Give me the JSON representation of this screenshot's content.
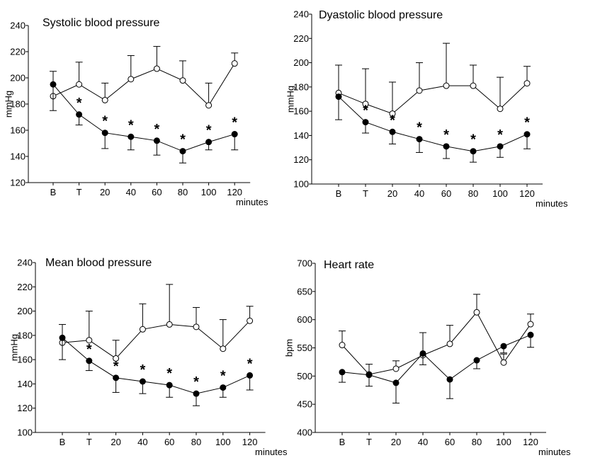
{
  "chart_data": [
    {
      "type": "line",
      "title": "Systolic blood pressure",
      "ylabel": "mmHg",
      "xunit": "minutes",
      "categories": [
        "B",
        "T",
        "20",
        "40",
        "60",
        "80",
        "100",
        "120"
      ],
      "ylim": [
        120,
        240
      ],
      "yticks": [
        120,
        140,
        160,
        180,
        200,
        220,
        240
      ],
      "series": [
        {
          "name": "open",
          "marker": "open",
          "values": [
            186,
            195,
            183,
            199,
            207,
            198,
            179,
            211
          ],
          "err": [
            19,
            17,
            13,
            18,
            17,
            15,
            17,
            8
          ]
        },
        {
          "name": "filled",
          "marker": "filled",
          "values": [
            195,
            172,
            158,
            155,
            152,
            144,
            151,
            157
          ],
          "err": [
            20,
            8,
            12,
            10,
            11,
            9,
            6,
            12
          ]
        }
      ],
      "significance": [
        "",
        "*",
        "*",
        "*",
        "*",
        "*",
        "*",
        "*"
      ]
    },
    {
      "type": "line",
      "title": "Dyastolic blood pressure",
      "ylabel": "mmHg",
      "xunit": "minutes",
      "categories": [
        "B",
        "T",
        "20",
        "40",
        "60",
        "80",
        "100",
        "120"
      ],
      "ylim": [
        100,
        240
      ],
      "yticks": [
        100,
        120,
        140,
        160,
        180,
        200,
        220,
        240
      ],
      "series": [
        {
          "name": "open",
          "marker": "open",
          "values": [
            175,
            166,
            158,
            177,
            181,
            181,
            162,
            183
          ],
          "err": [
            23,
            29,
            26,
            23,
            35,
            17,
            26,
            14
          ]
        },
        {
          "name": "filled",
          "marker": "filled",
          "values": [
            172,
            151,
            143,
            137,
            131,
            127,
            131,
            141
          ],
          "err": [
            19,
            9,
            10,
            11,
            10,
            9,
            9,
            12
          ]
        }
      ],
      "significance": [
        "",
        "*",
        "*",
        "*",
        "*",
        "*",
        "*",
        "*"
      ]
    },
    {
      "type": "line",
      "title": "Mean blood pressure",
      "ylabel": "mmHg",
      "xunit": "minutes",
      "categories": [
        "B",
        "T",
        "20",
        "40",
        "60",
        "80",
        "100",
        "120"
      ],
      "ylim": [
        100,
        240
      ],
      "yticks": [
        100,
        120,
        140,
        160,
        180,
        200,
        220,
        240
      ],
      "series": [
        {
          "name": "open",
          "marker": "open",
          "values": [
            174,
            176,
            161,
            185,
            189,
            187,
            169,
            192
          ],
          "err": [
            15,
            24,
            15,
            21,
            33,
            16,
            24,
            12
          ]
        },
        {
          "name": "filled",
          "marker": "filled",
          "values": [
            178,
            159,
            145,
            142,
            139,
            132,
            137,
            147
          ],
          "err": [
            18,
            8,
            12,
            10,
            10,
            10,
            8,
            12
          ]
        }
      ],
      "significance": [
        "",
        "*",
        "*",
        "*",
        "*",
        "*",
        "*",
        "*"
      ]
    },
    {
      "type": "line",
      "title": "Heart rate",
      "ylabel": "bpm",
      "xunit": "minutes",
      "categories": [
        "B",
        "T",
        "20",
        "40",
        "60",
        "80",
        "100",
        "120"
      ],
      "ylim": [
        400,
        700
      ],
      "yticks": [
        400,
        450,
        500,
        550,
        600,
        650,
        700
      ],
      "series": [
        {
          "name": "open",
          "marker": "open",
          "values": [
            555,
            503,
            513,
            537,
            557,
            613,
            524,
            592
          ],
          "err": [
            25,
            18,
            14,
            40,
            33,
            32,
            15,
            18
          ]
        },
        {
          "name": "filled",
          "marker": "filled",
          "values": [
            507,
            502,
            488,
            540,
            494,
            528,
            553,
            573
          ],
          "err": [
            18,
            20,
            36,
            20,
            34,
            15,
            12,
            22
          ]
        }
      ],
      "significance": [
        "",
        "",
        "",
        "",
        "",
        "",
        "",
        ""
      ]
    }
  ]
}
